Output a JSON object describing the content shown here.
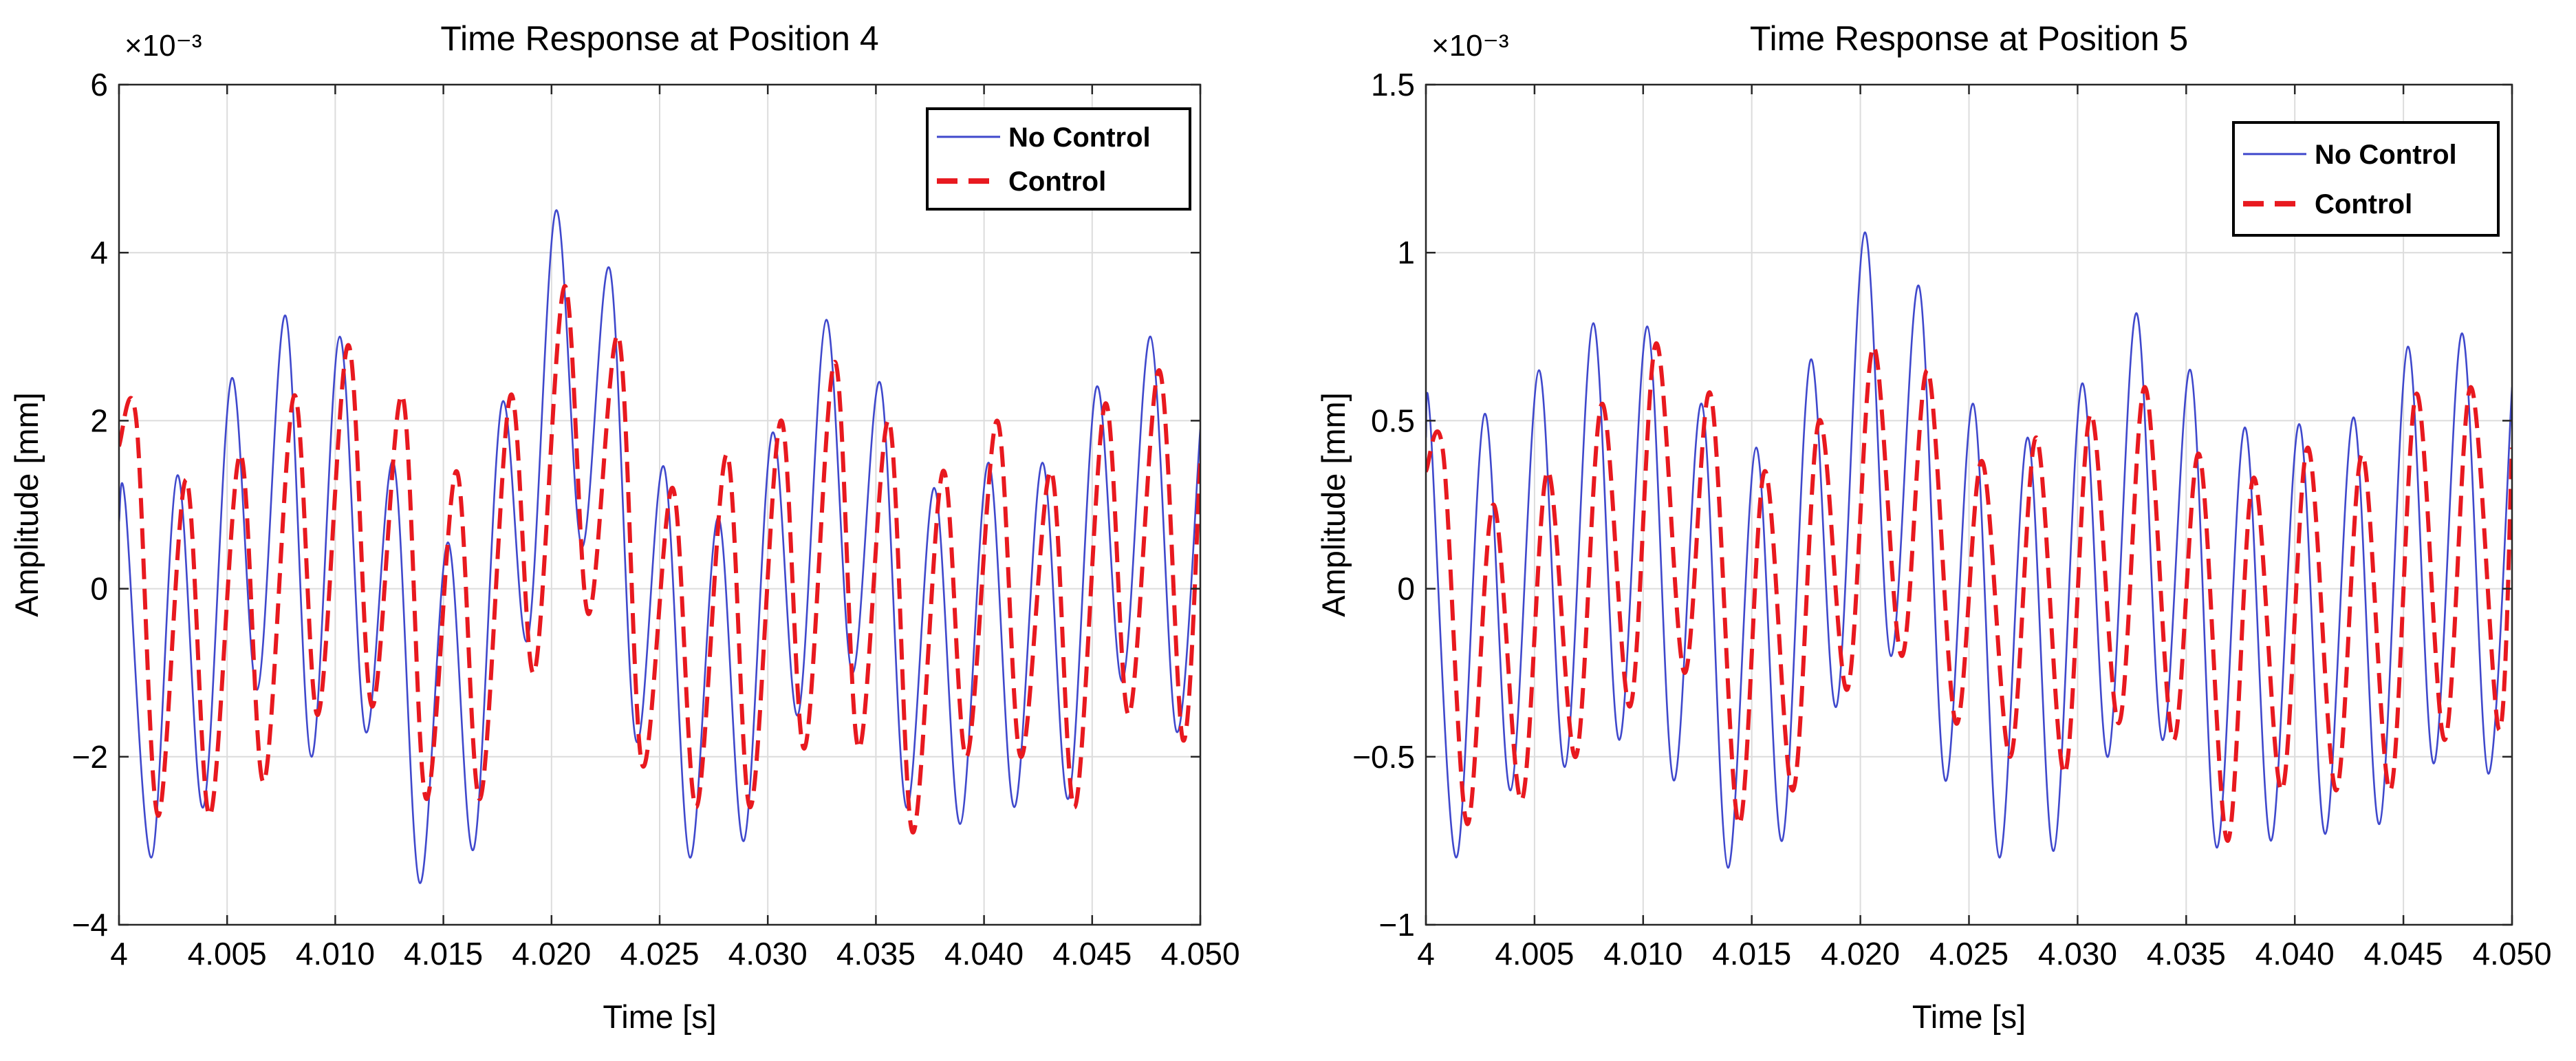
{
  "chart_data": [
    {
      "type": "line",
      "title": "Time Response at Position 4",
      "xlabel": "Time [s]",
      "ylabel": "Amplitude [mm]",
      "y_multiplier": "×10⁻³",
      "xlim": [
        4.0,
        4.05
      ],
      "ylim": [
        -4,
        6
      ],
      "xticks": [
        4.0,
        4.005,
        4.01,
        4.015,
        4.02,
        4.025,
        4.03,
        4.035,
        4.04,
        4.045,
        4.05
      ],
      "xtick_labels": [
        "4",
        "4.005",
        "4.010",
        "4.015",
        "4.020",
        "4.025",
        "4.030",
        "4.035",
        "4.040",
        "4.045",
        "4.050"
      ],
      "yticks": [
        -4,
        -2,
        0,
        2,
        4,
        6
      ],
      "ytick_labels": [
        "−4",
        "−2",
        "0",
        "2",
        "4",
        "6"
      ],
      "grid": true,
      "legend_position": "top-right",
      "colors": {
        "no_control": "#3f48cc",
        "control": "#e8191f"
      },
      "series": [
        {
          "name": "No Control",
          "style": "solid",
          "x": [
            4.0,
            4.0003,
            4.0015,
            4.0027,
            4.0039,
            4.0052,
            4.0064,
            4.0077,
            4.0089,
            4.0102,
            4.0114,
            4.0127,
            4.0139,
            4.0152,
            4.0164,
            4.0177,
            4.0189,
            4.0202,
            4.0214,
            4.0227,
            4.0239,
            4.0252,
            4.0264,
            4.0277,
            4.0289,
            4.0302,
            4.0314,
            4.0327,
            4.0339,
            4.0352,
            4.0364,
            4.0377,
            4.0389,
            4.0402,
            4.0414,
            4.0427,
            4.0439,
            4.0452,
            4.0464,
            4.0477,
            4.0489,
            4.05
          ],
          "y": [
            0.8,
            1.0,
            -3.2,
            1.35,
            -2.6,
            2.5,
            -1.2,
            3.25,
            -2.0,
            3.0,
            -1.7,
            1.5,
            -3.5,
            0.55,
            -3.1,
            2.2,
            -0.6,
            4.5,
            0.5,
            3.8,
            -1.8,
            1.45,
            -3.2,
            0.85,
            -3.0,
            1.85,
            -1.5,
            3.2,
            -1.0,
            2.45,
            -2.6,
            1.2,
            -2.8,
            1.5,
            -2.6,
            1.5,
            -2.5,
            2.4,
            -1.1,
            3.0,
            -1.7,
            1.9
          ]
        },
        {
          "name": "Control",
          "style": "dashed",
          "x": [
            4.0,
            4.0008,
            4.0018,
            4.0031,
            4.0042,
            4.0056,
            4.0067,
            4.0081,
            4.0092,
            4.0106,
            4.0117,
            4.0131,
            4.0142,
            4.0156,
            4.0167,
            4.0181,
            4.0192,
            4.0206,
            4.0217,
            4.0231,
            4.0242,
            4.0256,
            4.0267,
            4.0281,
            4.0292,
            4.0306,
            4.0317,
            4.0331,
            4.0342,
            4.0356,
            4.0367,
            4.0381,
            4.0392,
            4.0406,
            4.0417,
            4.0431,
            4.0442,
            4.0456,
            4.0467,
            4.0481,
            4.0492,
            4.05
          ],
          "y": [
            1.7,
            2.0,
            -2.7,
            1.3,
            -2.7,
            1.6,
            -2.3,
            2.3,
            -1.5,
            2.9,
            -1.4,
            2.3,
            -2.5,
            1.4,
            -2.5,
            2.3,
            -1.0,
            3.6,
            -0.3,
            3.0,
            -2.1,
            1.2,
            -2.6,
            1.6,
            -2.6,
            2.0,
            -1.9,
            2.7,
            -1.9,
            2.0,
            -2.9,
            1.4,
            -2.0,
            2.0,
            -2.0,
            1.4,
            -2.6,
            2.2,
            -1.5,
            2.6,
            -1.8,
            1.5
          ]
        }
      ]
    },
    {
      "type": "line",
      "title": "Time Response at Position 5",
      "xlabel": "Time [s]",
      "ylabel": "Amplitude [mm]",
      "y_multiplier": "×10⁻³",
      "xlim": [
        4.0,
        4.05
      ],
      "ylim": [
        -1,
        1.5
      ],
      "xticks": [
        4.0,
        4.005,
        4.01,
        4.015,
        4.02,
        4.025,
        4.03,
        4.035,
        4.04,
        4.045,
        4.05
      ],
      "xtick_labels": [
        "4",
        "4.005",
        "4.010",
        "4.015",
        "4.020",
        "4.025",
        "4.030",
        "4.035",
        "4.040",
        "4.045",
        "4.050"
      ],
      "yticks": [
        -1,
        -0.5,
        0,
        0.5,
        1,
        1.5
      ],
      "ytick_labels": [
        "−1",
        "−0.5",
        "0",
        "0.5",
        "1",
        "1.5"
      ],
      "grid": true,
      "legend_position": "top-right",
      "colors": {
        "no_control": "#3f48cc",
        "control": "#e8191f"
      },
      "series": [
        {
          "name": "No Control",
          "style": "solid",
          "x": [
            4.0,
            4.0002,
            4.0014,
            4.0027,
            4.0039,
            4.0052,
            4.0064,
            4.0077,
            4.0089,
            4.0102,
            4.0114,
            4.0127,
            4.0139,
            4.0152,
            4.0164,
            4.0177,
            4.0189,
            4.0202,
            4.0214,
            4.0227,
            4.0239,
            4.0252,
            4.0264,
            4.0277,
            4.0289,
            4.0302,
            4.0314,
            4.0327,
            4.0339,
            4.0352,
            4.0364,
            4.0377,
            4.0389,
            4.0402,
            4.0414,
            4.0427,
            4.0439,
            4.0452,
            4.0464,
            4.0477,
            4.0489,
            4.05
          ],
          "y": [
            0.45,
            0.5,
            -0.8,
            0.52,
            -0.6,
            0.65,
            -0.53,
            0.79,
            -0.45,
            0.78,
            -0.57,
            0.55,
            -0.83,
            0.42,
            -0.75,
            0.68,
            -0.35,
            1.06,
            -0.2,
            0.9,
            -0.57,
            0.55,
            -0.8,
            0.45,
            -0.78,
            0.61,
            -0.5,
            0.82,
            -0.45,
            0.65,
            -0.77,
            0.48,
            -0.75,
            0.49,
            -0.73,
            0.51,
            -0.7,
            0.72,
            -0.52,
            0.76,
            -0.55,
            0.6
          ]
        },
        {
          "name": "Control",
          "style": "dashed",
          "x": [
            4.0,
            4.0008,
            4.0019,
            4.0031,
            4.0044,
            4.0056,
            4.0069,
            4.0081,
            4.0094,
            4.0106,
            4.0119,
            4.0131,
            4.0144,
            4.0156,
            4.0169,
            4.0181,
            4.0194,
            4.0206,
            4.0219,
            4.0231,
            4.0244,
            4.0256,
            4.0269,
            4.0281,
            4.0294,
            4.0306,
            4.0319,
            4.0331,
            4.0344,
            4.0356,
            4.0369,
            4.0381,
            4.0394,
            4.0406,
            4.0419,
            4.0431,
            4.0444,
            4.0456,
            4.0469,
            4.0481,
            4.0494,
            4.05
          ],
          "y": [
            0.35,
            0.4,
            -0.7,
            0.25,
            -0.63,
            0.35,
            -0.5,
            0.55,
            -0.35,
            0.73,
            -0.25,
            0.58,
            -0.7,
            0.35,
            -0.6,
            0.5,
            -0.3,
            0.72,
            -0.2,
            0.65,
            -0.4,
            0.38,
            -0.5,
            0.45,
            -0.55,
            0.52,
            -0.4,
            0.6,
            -0.45,
            0.4,
            -0.75,
            0.33,
            -0.6,
            0.42,
            -0.6,
            0.4,
            -0.6,
            0.58,
            -0.45,
            0.6,
            -0.42,
            0.42
          ]
        }
      ]
    }
  ]
}
